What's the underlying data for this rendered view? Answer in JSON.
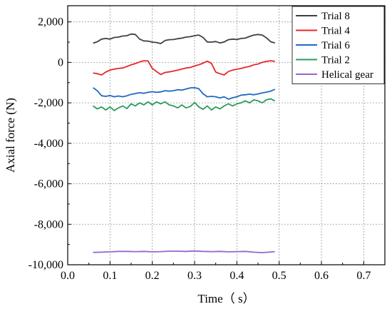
{
  "chart_data": {
    "type": "line",
    "title": "",
    "xlabel": "Time（ s）",
    "ylabel": "Axial force (N)",
    "xlim": [
      0.0,
      0.75
    ],
    "ylim": [
      -10000,
      2800
    ],
    "x_ticks": [
      0.0,
      0.1,
      0.2,
      0.3,
      0.4,
      0.5,
      0.6,
      0.7
    ],
    "x_tick_labels": [
      "0.0",
      "0.1",
      "0.2",
      "0.3",
      "0.4",
      "0.5",
      "0.6",
      "0.7"
    ],
    "y_ticks": [
      2000,
      0,
      -2000,
      -4000,
      -6000,
      -8000,
      -10000
    ],
    "y_tick_labels": [
      "2,000",
      "0",
      "-2,000",
      "-4,000",
      "-6,000",
      "-8,000",
      "-10,000"
    ],
    "grid": true,
    "legend_position": "top-right",
    "series": [
      {
        "name": "Trial 8",
        "color": "#404040",
        "x": [
          0.06,
          0.07,
          0.08,
          0.09,
          0.1,
          0.11,
          0.12,
          0.13,
          0.14,
          0.15,
          0.16,
          0.17,
          0.18,
          0.19,
          0.2,
          0.21,
          0.22,
          0.23,
          0.24,
          0.25,
          0.26,
          0.27,
          0.28,
          0.29,
          0.3,
          0.31,
          0.32,
          0.33,
          0.34,
          0.35,
          0.36,
          0.37,
          0.38,
          0.39,
          0.4,
          0.41,
          0.42,
          0.43,
          0.44,
          0.45,
          0.46,
          0.47,
          0.48,
          0.49
        ],
        "y": [
          950,
          1020,
          1150,
          1180,
          1150,
          1230,
          1250,
          1300,
          1320,
          1400,
          1380,
          1150,
          1060,
          1050,
          1000,
          980,
          930,
          1080,
          1120,
          1130,
          1170,
          1200,
          1250,
          1270,
          1320,
          1350,
          1230,
          1010,
          1000,
          1030,
          960,
          1010,
          1120,
          1150,
          1130,
          1180,
          1200,
          1280,
          1350,
          1380,
          1350,
          1210,
          1020,
          960
        ]
      },
      {
        "name": "Trial 4",
        "color": "#e8272a",
        "x": [
          0.06,
          0.07,
          0.08,
          0.09,
          0.1,
          0.11,
          0.12,
          0.13,
          0.14,
          0.15,
          0.16,
          0.17,
          0.18,
          0.19,
          0.2,
          0.21,
          0.22,
          0.23,
          0.24,
          0.25,
          0.26,
          0.27,
          0.28,
          0.29,
          0.3,
          0.31,
          0.32,
          0.33,
          0.34,
          0.35,
          0.36,
          0.37,
          0.38,
          0.39,
          0.4,
          0.41,
          0.42,
          0.43,
          0.44,
          0.45,
          0.46,
          0.47,
          0.48,
          0.49
        ],
        "y": [
          -520,
          -560,
          -620,
          -480,
          -380,
          -330,
          -300,
          -280,
          -200,
          -120,
          -60,
          20,
          80,
          70,
          -300,
          -450,
          -600,
          -500,
          -470,
          -430,
          -380,
          -330,
          -280,
          -250,
          -180,
          -120,
          -40,
          60,
          -50,
          -480,
          -560,
          -620,
          -450,
          -380,
          -340,
          -300,
          -240,
          -200,
          -120,
          -80,
          0,
          50,
          80,
          50
        ]
      },
      {
        "name": "Trial 6",
        "color": "#1f68c4",
        "x": [
          0.06,
          0.07,
          0.08,
          0.09,
          0.1,
          0.11,
          0.12,
          0.13,
          0.14,
          0.15,
          0.16,
          0.17,
          0.18,
          0.19,
          0.2,
          0.21,
          0.22,
          0.23,
          0.24,
          0.25,
          0.26,
          0.27,
          0.28,
          0.29,
          0.3,
          0.31,
          0.32,
          0.33,
          0.34,
          0.35,
          0.36,
          0.37,
          0.38,
          0.39,
          0.4,
          0.41,
          0.42,
          0.43,
          0.44,
          0.45,
          0.46,
          0.47,
          0.48,
          0.49
        ],
        "y": [
          -1250,
          -1400,
          -1650,
          -1680,
          -1640,
          -1700,
          -1660,
          -1700,
          -1650,
          -1580,
          -1540,
          -1500,
          -1530,
          -1480,
          -1450,
          -1480,
          -1460,
          -1400,
          -1420,
          -1400,
          -1350,
          -1370,
          -1320,
          -1260,
          -1250,
          -1300,
          -1550,
          -1700,
          -1680,
          -1700,
          -1760,
          -1700,
          -1820,
          -1750,
          -1700,
          -1620,
          -1600,
          -1570,
          -1600,
          -1560,
          -1510,
          -1470,
          -1420,
          -1330
        ]
      },
      {
        "name": "Trial 2",
        "color": "#2a9c5c",
        "x": [
          0.06,
          0.07,
          0.08,
          0.09,
          0.1,
          0.11,
          0.12,
          0.13,
          0.14,
          0.15,
          0.16,
          0.17,
          0.18,
          0.19,
          0.2,
          0.21,
          0.22,
          0.23,
          0.24,
          0.25,
          0.26,
          0.27,
          0.28,
          0.29,
          0.3,
          0.31,
          0.32,
          0.33,
          0.34,
          0.35,
          0.36,
          0.37,
          0.38,
          0.39,
          0.4,
          0.41,
          0.42,
          0.43,
          0.44,
          0.45,
          0.46,
          0.47,
          0.48,
          0.49
        ],
        "y": [
          -2150,
          -2300,
          -2200,
          -2350,
          -2200,
          -2380,
          -2250,
          -2150,
          -2280,
          -2050,
          -2150,
          -2000,
          -2100,
          -1950,
          -2100,
          -1950,
          -2050,
          -1950,
          -2100,
          -2150,
          -2250,
          -2100,
          -2250,
          -2180,
          -1980,
          -2200,
          -2320,
          -2150,
          -2350,
          -2200,
          -2300,
          -2150,
          -2050,
          -2150,
          -2050,
          -2000,
          -1900,
          -2000,
          -1850,
          -1900,
          -2000,
          -1850,
          -1800,
          -1900
        ]
      },
      {
        "name": "Helical gear",
        "color": "#9966cc",
        "x": [
          0.06,
          0.08,
          0.1,
          0.12,
          0.14,
          0.16,
          0.18,
          0.2,
          0.22,
          0.24,
          0.26,
          0.28,
          0.3,
          0.32,
          0.34,
          0.36,
          0.38,
          0.4,
          0.42,
          0.44,
          0.46,
          0.48,
          0.49
        ],
        "y": [
          -9390,
          -9380,
          -9360,
          -9340,
          -9340,
          -9350,
          -9340,
          -9360,
          -9350,
          -9330,
          -9330,
          -9340,
          -9320,
          -9340,
          -9350,
          -9340,
          -9360,
          -9350,
          -9340,
          -9380,
          -9400,
          -9370,
          -9350
        ]
      }
    ]
  }
}
